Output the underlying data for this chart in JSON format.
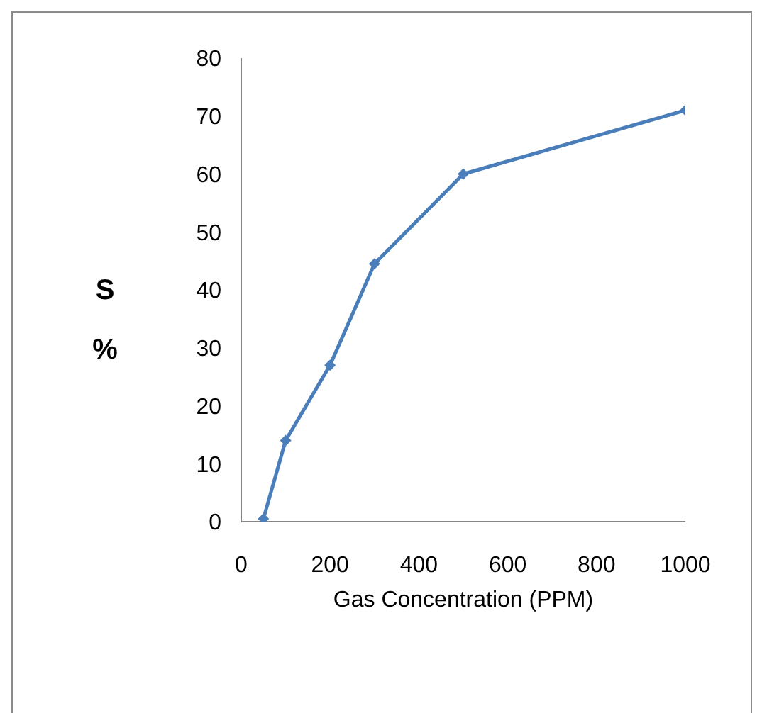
{
  "chart_data": {
    "type": "line",
    "xlabel": "Gas Concentration (PPM)",
    "ylabel": "S %",
    "x": [
      50,
      100,
      200,
      300,
      500,
      1000
    ],
    "series": [
      {
        "color": "#4a7ebb",
        "values": [
          0.5,
          14,
          27,
          44.5,
          60,
          71
        ]
      }
    ],
    "xlim": [
      0,
      1000
    ],
    "xticks": [
      0,
      200,
      400,
      600,
      800,
      1000
    ],
    "ylim": [
      0,
      80
    ],
    "yticks": [
      0,
      10,
      20,
      30,
      40,
      50,
      60,
      70,
      80
    ],
    "marker": "diamond",
    "line_style": "solid",
    "grid": false,
    "legend": false
  }
}
